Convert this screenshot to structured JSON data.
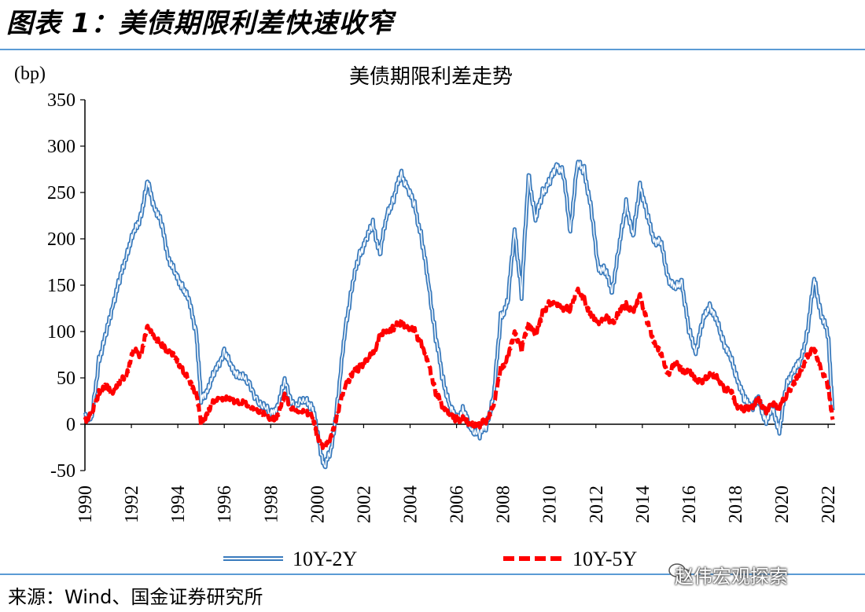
{
  "figure_title": "图表 1：美债期限利差快速收窄",
  "source": "来源：Wind、国金证券研究所",
  "watermark": "赵伟宏观探索",
  "colors": {
    "rule": "#5b9bd5",
    "series1": "#3a7bbd",
    "series2": "#ff0000"
  },
  "chart_data": {
    "type": "line",
    "title": "美债期限利差走势",
    "ylabel": "(bp)",
    "ylim": [
      -50,
      350
    ],
    "yticks": [
      -50,
      0,
      50,
      100,
      150,
      200,
      250,
      300,
      350
    ],
    "xlim": [
      1990,
      2022.3
    ],
    "xticks": [
      "1990",
      "1992",
      "1994",
      "1996",
      "1998",
      "2000",
      "2002",
      "2004",
      "2006",
      "2008",
      "2010",
      "2012",
      "2014",
      "2016",
      "2018",
      "2020",
      "2022"
    ],
    "legend_position": "bottom",
    "grid": false,
    "series": [
      {
        "name": "10Y-2Y",
        "style": "double-line",
        "x": [
          1990.0,
          1990.3,
          1990.6,
          1990.9,
          1991.2,
          1991.5,
          1991.8,
          1992.1,
          1992.4,
          1992.7,
          1993.0,
          1993.3,
          1993.6,
          1993.9,
          1994.2,
          1994.5,
          1994.8,
          1995.0,
          1995.3,
          1995.6,
          1996.0,
          1996.3,
          1996.6,
          1997.0,
          1997.5,
          1998.0,
          1998.3,
          1998.6,
          1999.0,
          1999.5,
          1999.8,
          2000.0,
          2000.3,
          2000.6,
          2000.9,
          2001.2,
          2001.5,
          2001.8,
          2002.1,
          2002.4,
          2002.7,
          2003.0,
          2003.3,
          2003.6,
          2003.9,
          2004.2,
          2004.5,
          2004.8,
          2005.1,
          2005.4,
          2005.7,
          2006.0,
          2006.3,
          2006.6,
          2007.0,
          2007.3,
          2007.6,
          2007.9,
          2008.2,
          2008.5,
          2008.8,
          2009.1,
          2009.4,
          2009.7,
          2010.0,
          2010.3,
          2010.6,
          2010.9,
          2011.2,
          2011.5,
          2011.8,
          2012.1,
          2012.4,
          2012.7,
          2013.0,
          2013.3,
          2013.6,
          2013.9,
          2014.2,
          2014.5,
          2014.8,
          2015.1,
          2015.4,
          2015.7,
          2016.0,
          2016.3,
          2016.6,
          2016.9,
          2017.2,
          2017.5,
          2017.8,
          2018.1,
          2018.4,
          2018.7,
          2019.0,
          2019.3,
          2019.6,
          2019.9,
          2020.2,
          2020.5,
          2020.8,
          2021.1,
          2021.4,
          2021.7,
          2022.0,
          2022.2
        ],
        "y": [
          10,
          5,
          70,
          95,
          130,
          155,
          185,
          205,
          225,
          260,
          235,
          215,
          180,
          160,
          150,
          130,
          100,
          25,
          40,
          55,
          80,
          60,
          55,
          45,
          25,
          10,
          20,
          45,
          20,
          25,
          20,
          -10,
          -45,
          -30,
          30,
          100,
          150,
          180,
          200,
          215,
          185,
          225,
          245,
          270,
          255,
          235,
          200,
          150,
          95,
          50,
          20,
          5,
          15,
          -5,
          -10,
          0,
          30,
          115,
          130,
          210,
          140,
          270,
          220,
          250,
          260,
          280,
          270,
          210,
          280,
          275,
          230,
          170,
          165,
          145,
          190,
          240,
          200,
          260,
          225,
          200,
          195,
          160,
          145,
          155,
          100,
          80,
          110,
          130,
          110,
          90,
          70,
          50,
          25,
          20,
          25,
          5,
          15,
          -5,
          40,
          60,
          65,
          100,
          155,
          120,
          95,
          15
        ]
      },
      {
        "name": "10Y-5Y",
        "style": "dashed",
        "x": [
          1990.0,
          1990.3,
          1990.6,
          1990.9,
          1991.2,
          1991.5,
          1991.8,
          1992.1,
          1992.4,
          1992.7,
          1993.0,
          1993.3,
          1993.6,
          1993.9,
          1994.2,
          1994.5,
          1994.8,
          1995.0,
          1995.3,
          1995.6,
          1996.0,
          1996.3,
          1996.6,
          1997.0,
          1997.5,
          1998.0,
          1998.3,
          1998.6,
          1999.0,
          1999.5,
          1999.8,
          2000.0,
          2000.3,
          2000.6,
          2000.9,
          2001.2,
          2001.5,
          2001.8,
          2002.1,
          2002.4,
          2002.7,
          2003.0,
          2003.3,
          2003.6,
          2003.9,
          2004.2,
          2004.5,
          2004.8,
          2005.1,
          2005.4,
          2005.7,
          2006.0,
          2006.3,
          2006.6,
          2007.0,
          2007.3,
          2007.6,
          2007.9,
          2008.2,
          2008.5,
          2008.8,
          2009.1,
          2009.4,
          2009.7,
          2010.0,
          2010.3,
          2010.6,
          2010.9,
          2011.2,
          2011.5,
          2011.8,
          2012.1,
          2012.4,
          2012.7,
          2013.0,
          2013.3,
          2013.6,
          2013.9,
          2014.2,
          2014.5,
          2014.8,
          2015.1,
          2015.4,
          2015.7,
          2016.0,
          2016.3,
          2016.6,
          2016.9,
          2017.2,
          2017.5,
          2017.8,
          2018.1,
          2018.4,
          2018.7,
          2019.0,
          2019.3,
          2019.6,
          2019.9,
          2020.2,
          2020.5,
          2020.8,
          2021.1,
          2021.4,
          2021.7,
          2022.0,
          2022.2
        ],
        "y": [
          5,
          10,
          35,
          40,
          35,
          45,
          55,
          80,
          75,
          105,
          95,
          85,
          80,
          70,
          60,
          45,
          35,
          0,
          15,
          25,
          30,
          25,
          25,
          20,
          15,
          5,
          10,
          30,
          15,
          12,
          10,
          -15,
          -25,
          -15,
          15,
          40,
          55,
          60,
          70,
          75,
          95,
          100,
          105,
          110,
          105,
          100,
          85,
          65,
          35,
          20,
          10,
          5,
          5,
          0,
          0,
          5,
          20,
          60,
          70,
          100,
          80,
          110,
          95,
          120,
          130,
          130,
          125,
          125,
          145,
          135,
          115,
          110,
          115,
          110,
          120,
          130,
          120,
          140,
          110,
          90,
          75,
          55,
          65,
          60,
          55,
          50,
          45,
          55,
          50,
          40,
          35,
          20,
          15,
          20,
          25,
          15,
          20,
          20,
          30,
          45,
          55,
          75,
          80,
          60,
          40,
          5
        ]
      }
    ]
  }
}
